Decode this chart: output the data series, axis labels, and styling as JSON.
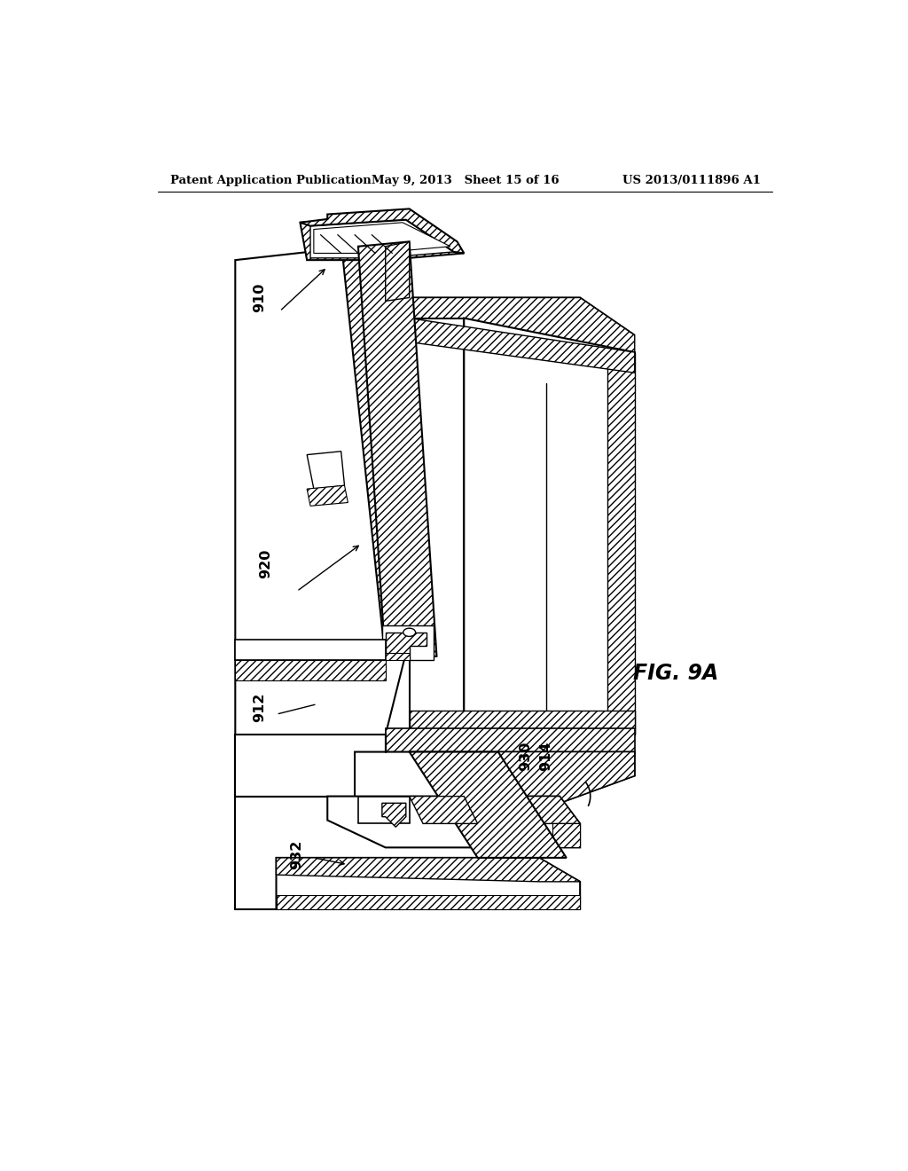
{
  "header_left": "Patent Application Publication",
  "header_center": "May 9, 2013   Sheet 15 of 16",
  "header_right": "US 2013/0111896 A1",
  "fig_label": "FIG. 9A",
  "bg_color": "#ffffff"
}
